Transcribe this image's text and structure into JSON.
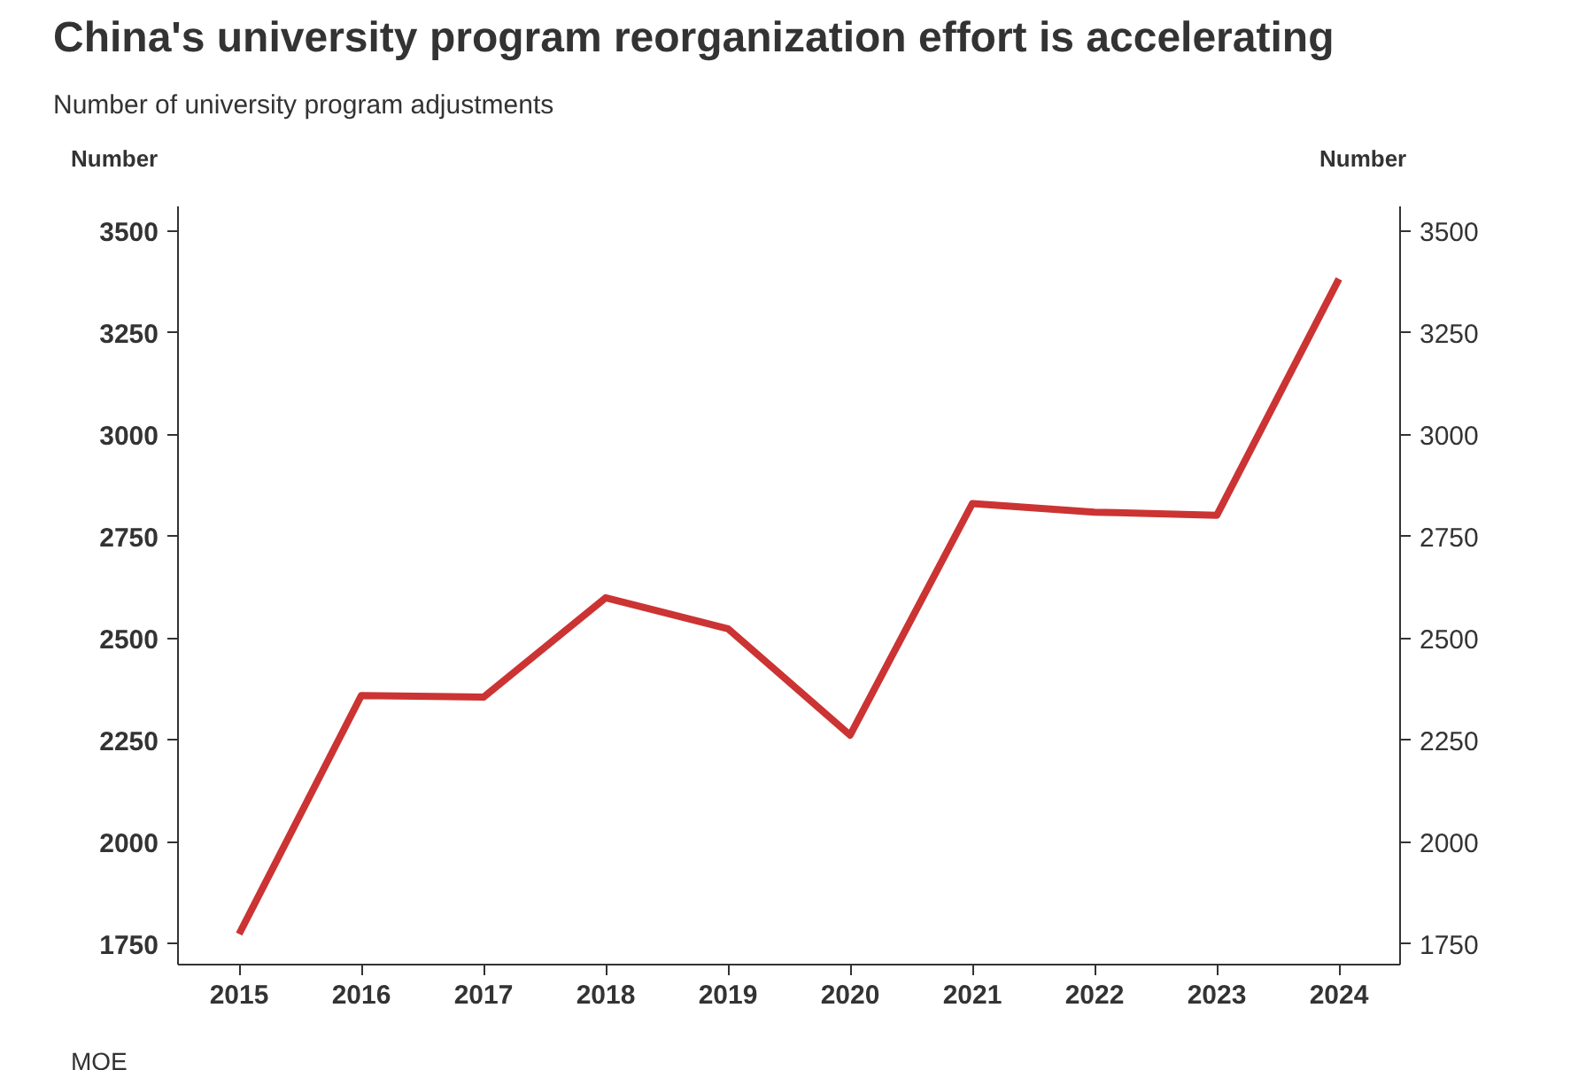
{
  "chart_data": {
    "type": "line",
    "title": "China's university program reorganization effort is accelerating",
    "subtitle": "Number of university program adjustments",
    "ylabel": "Number",
    "y2label": "Number",
    "categories": [
      "2015",
      "2016",
      "2017",
      "2018",
      "2019",
      "2020",
      "2021",
      "2022",
      "2023",
      "2024"
    ],
    "series": [
      {
        "color": "#cc3333",
        "values": [
          1775,
          2360,
          2356,
          2600,
          2524,
          2263,
          2831,
          2810,
          2802,
          3382
        ]
      }
    ],
    "ylim": [
      1700,
      3560
    ],
    "yticks": [
      1750,
      2000,
      2250,
      2500,
      2750,
      3000,
      3250,
      3500
    ],
    "y2lim": [
      1700,
      3560
    ],
    "y2ticks": [
      1750,
      2000,
      2250,
      2500,
      2750,
      3000,
      3250,
      3500
    ],
    "annotations": [
      "MOE"
    ],
    "grid": false,
    "marker": "none",
    "line_style": "solid"
  }
}
